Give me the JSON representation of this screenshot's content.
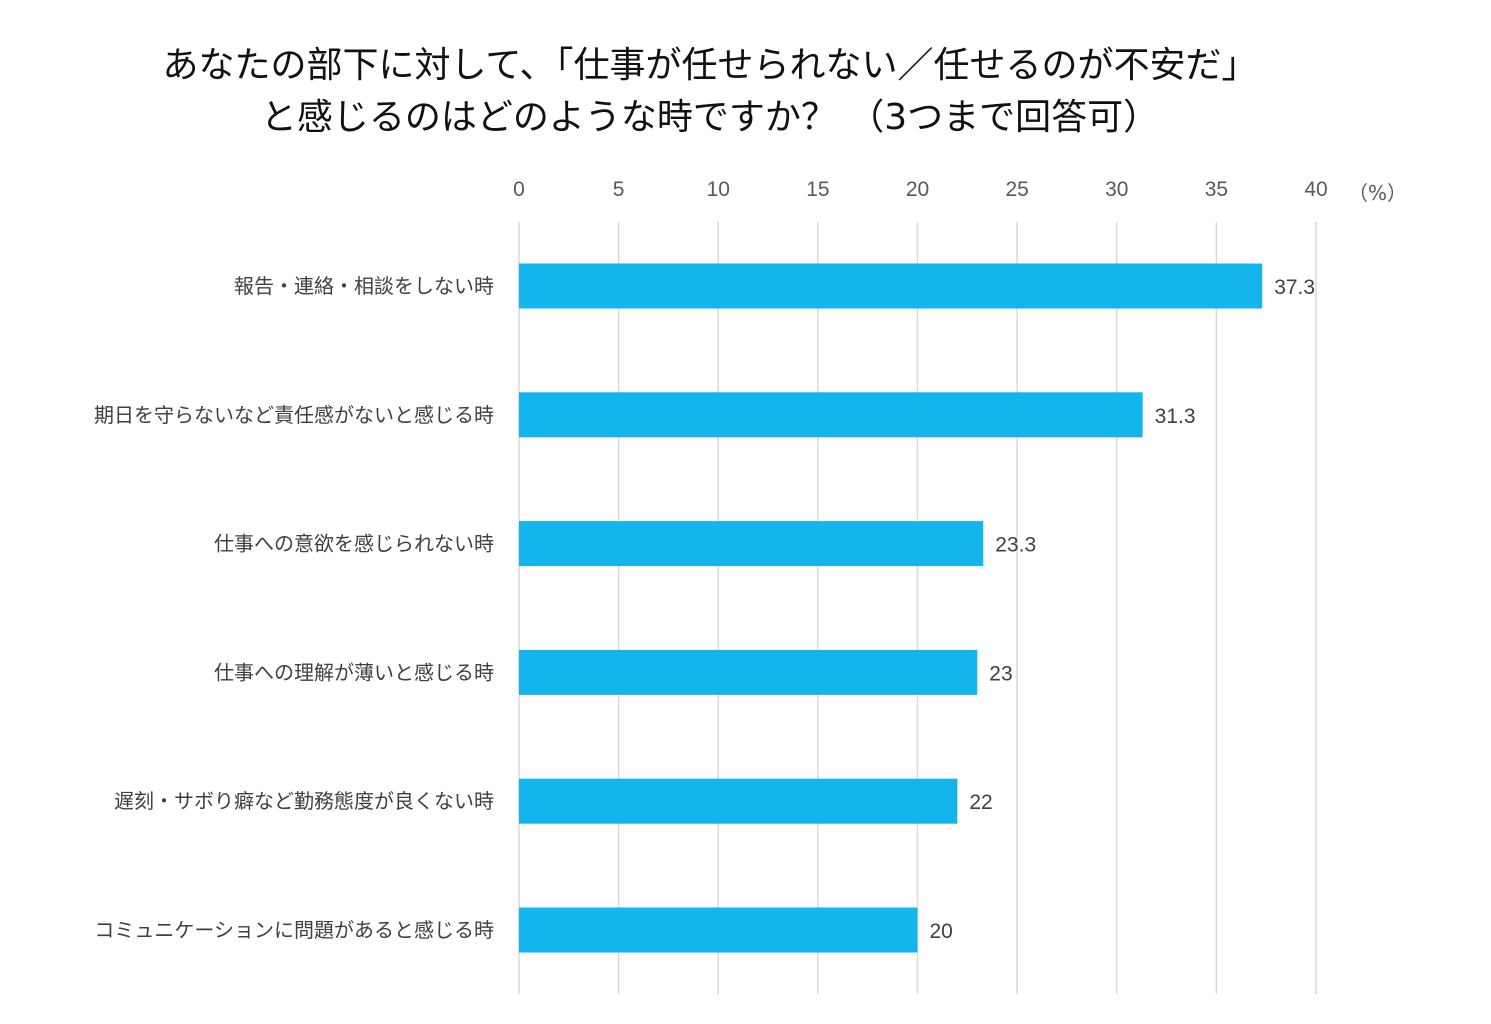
{
  "chart_data": {
    "type": "bar",
    "orientation": "horizontal",
    "title_lines": [
      "あなたの部下に対して、「仕事が任せられない／任せるのが不安だ」",
      "と感じるのはどのような時ですか？ （3つまで回答可）"
    ],
    "unit": "（%）",
    "xlim": [
      0,
      40
    ],
    "ticks": [
      "0",
      "5",
      "10",
      "15",
      "20",
      "25",
      "30",
      "35",
      "40"
    ],
    "tick_values": [
      0,
      5,
      10,
      15,
      20,
      25,
      30,
      35,
      40
    ],
    "axis_position": "top",
    "grid": true,
    "bar_color": "#14b4ec",
    "categories": [
      "報告・連絡・相談をしない時",
      "期日を守らないなど責任感がないと感じる時",
      "仕事への意欲を感じられない時",
      "仕事への理解が薄いと感じる時",
      "遅刻・サボり癖など勤務態度が良くない時",
      "コミュニケーションに問題があると感じる時"
    ],
    "values": [
      37.3,
      31.3,
      23.3,
      23,
      22,
      20
    ],
    "value_labels": [
      "37.3",
      "31.3",
      "23.3",
      "23",
      "22",
      "20"
    ]
  }
}
